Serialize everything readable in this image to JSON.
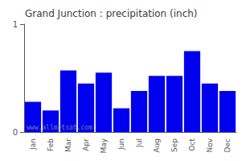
{
  "chart_data": {
    "type": "bar",
    "title": "Grand Junction : precipitation (inch)",
    "categories": [
      "Jan",
      "Feb",
      "Mar",
      "Apr",
      "May",
      "Jun",
      "Jul",
      "Aug",
      "Sep",
      "Oct",
      "Nov",
      "Dec"
    ],
    "values": [
      0.28,
      0.2,
      0.57,
      0.45,
      0.55,
      0.22,
      0.38,
      0.52,
      0.52,
      0.75,
      0.45,
      0.38
    ],
    "color": "#0000ee",
    "ylim": [
      0,
      1
    ],
    "yticks": [
      0,
      1
    ],
    "grid": false,
    "annotations": [
      "www.allmetsat.com"
    ]
  }
}
